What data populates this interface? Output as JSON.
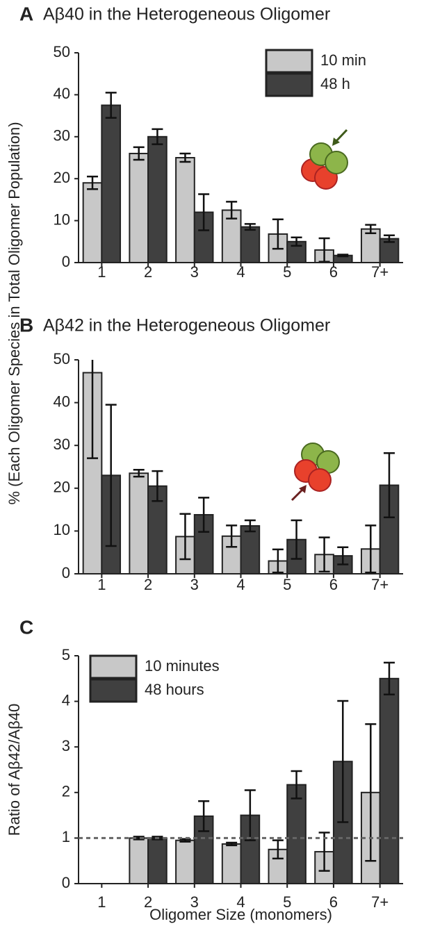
{
  "chart_data": [
    {
      "type": "bar",
      "panel": "A",
      "title": "Aβ40 in the Heterogeneous Oligomer",
      "ylabel": "% (Each Oligomer Species in Total Oligomer Population)",
      "categories": [
        "1",
        "2",
        "3",
        "4",
        "5",
        "6",
        "7+"
      ],
      "series": [
        {
          "name": "10 min",
          "color": "#c8c8c8",
          "values": [
            19,
            26,
            25,
            12.5,
            6.8,
            3,
            8
          ],
          "errors": [
            1.5,
            1.5,
            1,
            2,
            3.5,
            2.8,
            1
          ]
        },
        {
          "name": "48 h",
          "color": "#404040",
          "values": [
            37.5,
            30,
            12,
            8.5,
            5,
            1.7,
            5.7
          ],
          "errors": [
            3,
            1.8,
            4.3,
            0.7,
            1,
            0.2,
            0.8
          ]
        }
      ],
      "ylim": [
        0,
        50
      ],
      "yticks": [
        0,
        10,
        20,
        30,
        40,
        50
      ],
      "legend": "upper right"
    },
    {
      "type": "bar",
      "panel": "B",
      "title": "Aβ42 in the Heterogeneous Oligomer",
      "categories": [
        "1",
        "2",
        "3",
        "4",
        "5",
        "6",
        "7+"
      ],
      "series": [
        {
          "name": "10 min",
          "color": "#c8c8c8",
          "values": [
            47,
            23.5,
            8.7,
            8.8,
            3,
            4.5,
            5.8
          ],
          "errors": [
            20,
            0.8,
            5.3,
            2.5,
            2.7,
            4,
            5.5
          ]
        },
        {
          "name": "48 h",
          "color": "#404040",
          "values": [
            23,
            20.5,
            13.8,
            11.2,
            8,
            4.2,
            20.7
          ],
          "errors": [
            16.5,
            3.5,
            4,
            1.3,
            4.5,
            2,
            7.5
          ]
        }
      ],
      "ylim": [
        0,
        50
      ],
      "yticks": [
        0,
        10,
        20,
        30,
        40,
        50
      ]
    },
    {
      "type": "bar",
      "panel": "C",
      "ylabel": "Ratio of Aβ42/Aβ40",
      "xlabel": "Oligomer Size (monomers)",
      "categories": [
        "1",
        "2",
        "3",
        "4",
        "5",
        "6",
        "7+"
      ],
      "series": [
        {
          "name": "10 minutes",
          "color": "#c8c8c8",
          "values": [
            null,
            1.0,
            0.95,
            0.87,
            0.75,
            0.7,
            2.0
          ],
          "errors": [
            null,
            0.03,
            0.03,
            0.03,
            0.2,
            0.42,
            1.5
          ]
        },
        {
          "name": "48 hours",
          "color": "#404040",
          "values": [
            null,
            1.0,
            1.48,
            1.5,
            2.17,
            2.68,
            4.5
          ],
          "errors": [
            null,
            0.03,
            0.33,
            0.55,
            0.3,
            1.33,
            0.35
          ]
        }
      ],
      "ylim": [
        0,
        5
      ],
      "yticks": [
        0,
        1,
        2,
        3,
        4,
        5
      ],
      "reference_line": 1,
      "legend": "upper left"
    }
  ]
}
